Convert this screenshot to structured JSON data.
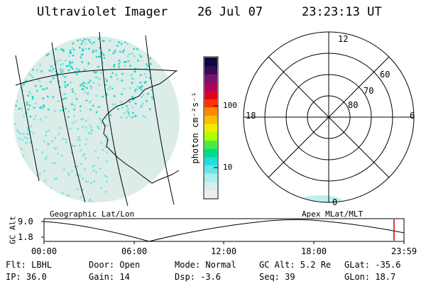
{
  "header": {
    "title": "Ultraviolet Imager",
    "date": "26 Jul 07",
    "time": "23:23:13 UT"
  },
  "colorbar": {
    "unit_label": "photon cm⁻²s⁻¹",
    "tick_labels": [
      "100",
      "10"
    ],
    "colors": [
      "#0a0a3a",
      "#3a0a5a",
      "#7a1070",
      "#b0005a",
      "#dd0022",
      "#ff3300",
      "#ff8800",
      "#ffbb00",
      "#eeee00",
      "#aaff00",
      "#44ee44",
      "#00dd88",
      "#22dddd",
      "#66e6e6",
      "#aaeeee",
      "#d5eeea",
      "#e8f0ee"
    ]
  },
  "map": {
    "label": "Geographic Lat/Lon",
    "colors": {
      "high": "#1fd8c8",
      "mid": "#6fe6e3",
      "low": "#dcece8"
    }
  },
  "polar": {
    "label": "Apex MLat/MLT",
    "lat_labels": [
      "60",
      "70",
      "80"
    ],
    "mlt_labels": {
      "top": "12",
      "bottom": "0",
      "left": "18",
      "right": "6"
    }
  },
  "alt_plot": {
    "ylabel": "GC Alt",
    "y_ticks": [
      "9.0",
      "1.8"
    ],
    "x_ticks": [
      "00:00",
      "06:00",
      "12:00",
      "18:00",
      "23:59"
    ],
    "marker_color": "#cc0000"
  },
  "footer": {
    "row1": [
      "Flt: LBHL",
      "Door: Open",
      "Mode: Normal",
      "GC Alt: 5.2 Re",
      "GLat: -35.6"
    ],
    "row2": [
      "IP: 36.0",
      "Gain: 14",
      "Dsp:   -3.6",
      "Seq: 39",
      "GLon:  18.7"
    ]
  }
}
